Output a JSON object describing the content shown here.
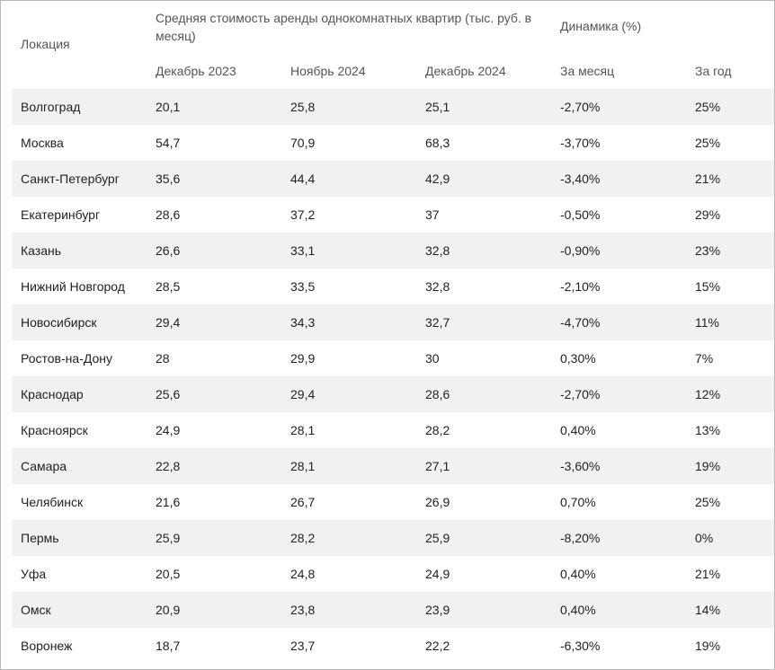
{
  "table": {
    "header": {
      "location": "Локация",
      "avg_rent": "Средняя стоимость аренды однокомнатных квартир (тыс. руб. в месяц)",
      "dynamics": "Динамика (%)",
      "dec2023": "Декабрь 2023",
      "nov2024": "Ноябрь 2024",
      "dec2024": "Декабрь 2024",
      "per_month": "За месяц",
      "per_year": "За год"
    },
    "rows": [
      [
        "Волгоград",
        "20,1",
        "25,8",
        "25,1",
        "-2,70%",
        "25%"
      ],
      [
        "Москва",
        "54,7",
        "70,9",
        "68,3",
        "-3,70%",
        "25%"
      ],
      [
        "Санкт-Петербург",
        "35,6",
        "44,4",
        "42,9",
        "-3,40%",
        "21%"
      ],
      [
        "Екатеринбург",
        "28,6",
        "37,2",
        "37",
        "-0,50%",
        "29%"
      ],
      [
        "Казань",
        "26,6",
        "33,1",
        "32,8",
        "-0,90%",
        "23%"
      ],
      [
        "Нижний Новгород",
        "28,5",
        "33,5",
        "32,8",
        "-2,10%",
        "15%"
      ],
      [
        "Новосибирск",
        "29,4",
        "34,3",
        "32,7",
        "-4,70%",
        "11%"
      ],
      [
        "Ростов-на-Дону",
        "28",
        "29,9",
        "30",
        "0,30%",
        "7%"
      ],
      [
        "Краснодар",
        "25,6",
        "29,4",
        "28,6",
        "-2,70%",
        "12%"
      ],
      [
        "Красноярск",
        "24,9",
        "28,1",
        "28,2",
        "0,40%",
        "13%"
      ],
      [
        "Самара",
        "22,8",
        "28,1",
        "27,1",
        "-3,60%",
        "19%"
      ],
      [
        "Челябинск",
        "21,6",
        "26,7",
        "26,9",
        "0,70%",
        "25%"
      ],
      [
        "Пермь",
        "25,9",
        "28,2",
        "25,9",
        "-8,20%",
        "0%"
      ],
      [
        "Уфа",
        "20,5",
        "24,8",
        "24,9",
        "0,40%",
        "21%"
      ],
      [
        "Омск",
        "20,9",
        "23,8",
        "23,9",
        "0,40%",
        "14%"
      ],
      [
        "Воронеж",
        "18,7",
        "23,7",
        "22,2",
        "-6,30%",
        "19%"
      ]
    ]
  }
}
